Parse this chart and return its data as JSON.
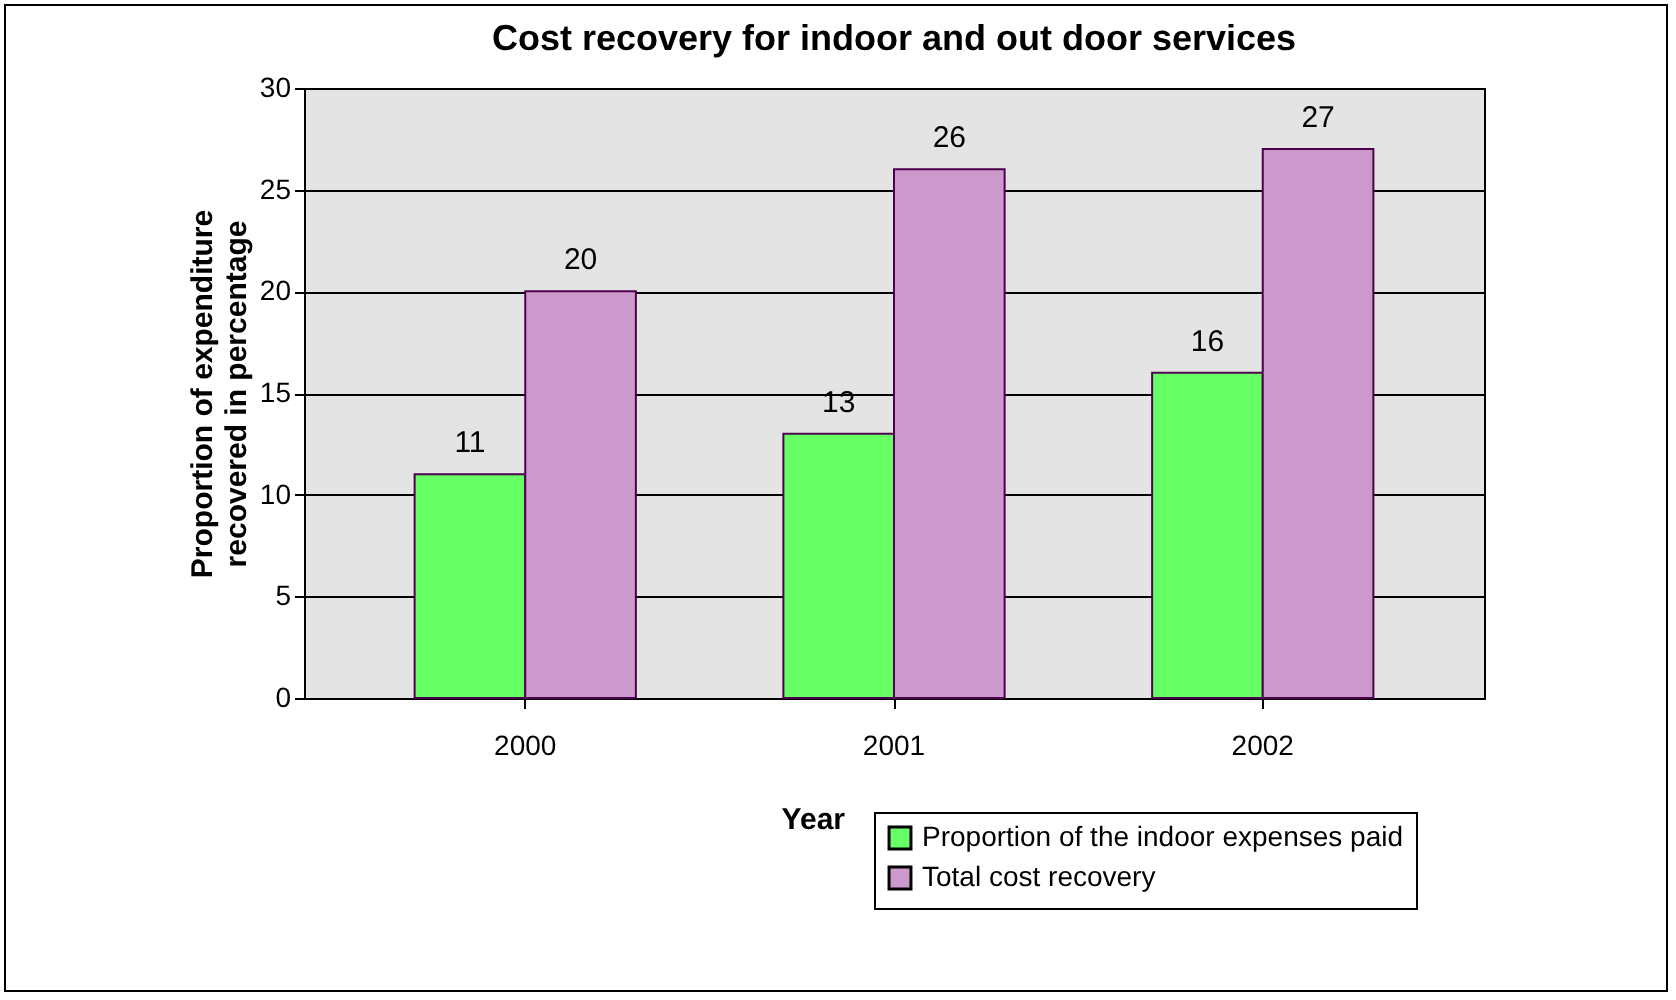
{
  "chart_data": {
    "type": "bar",
    "title": "Cost recovery for indoor and out door services",
    "xlabel": "Year",
    "ylabel": "Proportion of expenditure recovered in percentage",
    "categories": [
      "2000",
      "2001",
      "2002"
    ],
    "series": [
      {
        "name": "Proportion of the indoor expenses paid",
        "color": "#66ff66",
        "values": [
          11,
          13,
          16
        ]
      },
      {
        "name": "Total cost recovery",
        "color": "#cc99cc",
        "values": [
          20,
          26,
          27
        ]
      }
    ],
    "ylim": [
      0,
      30
    ],
    "yticks": [
      0,
      5,
      10,
      15,
      20,
      25,
      30
    ],
    "grid": "y",
    "legend": "bottom right",
    "data_labels": true
  }
}
